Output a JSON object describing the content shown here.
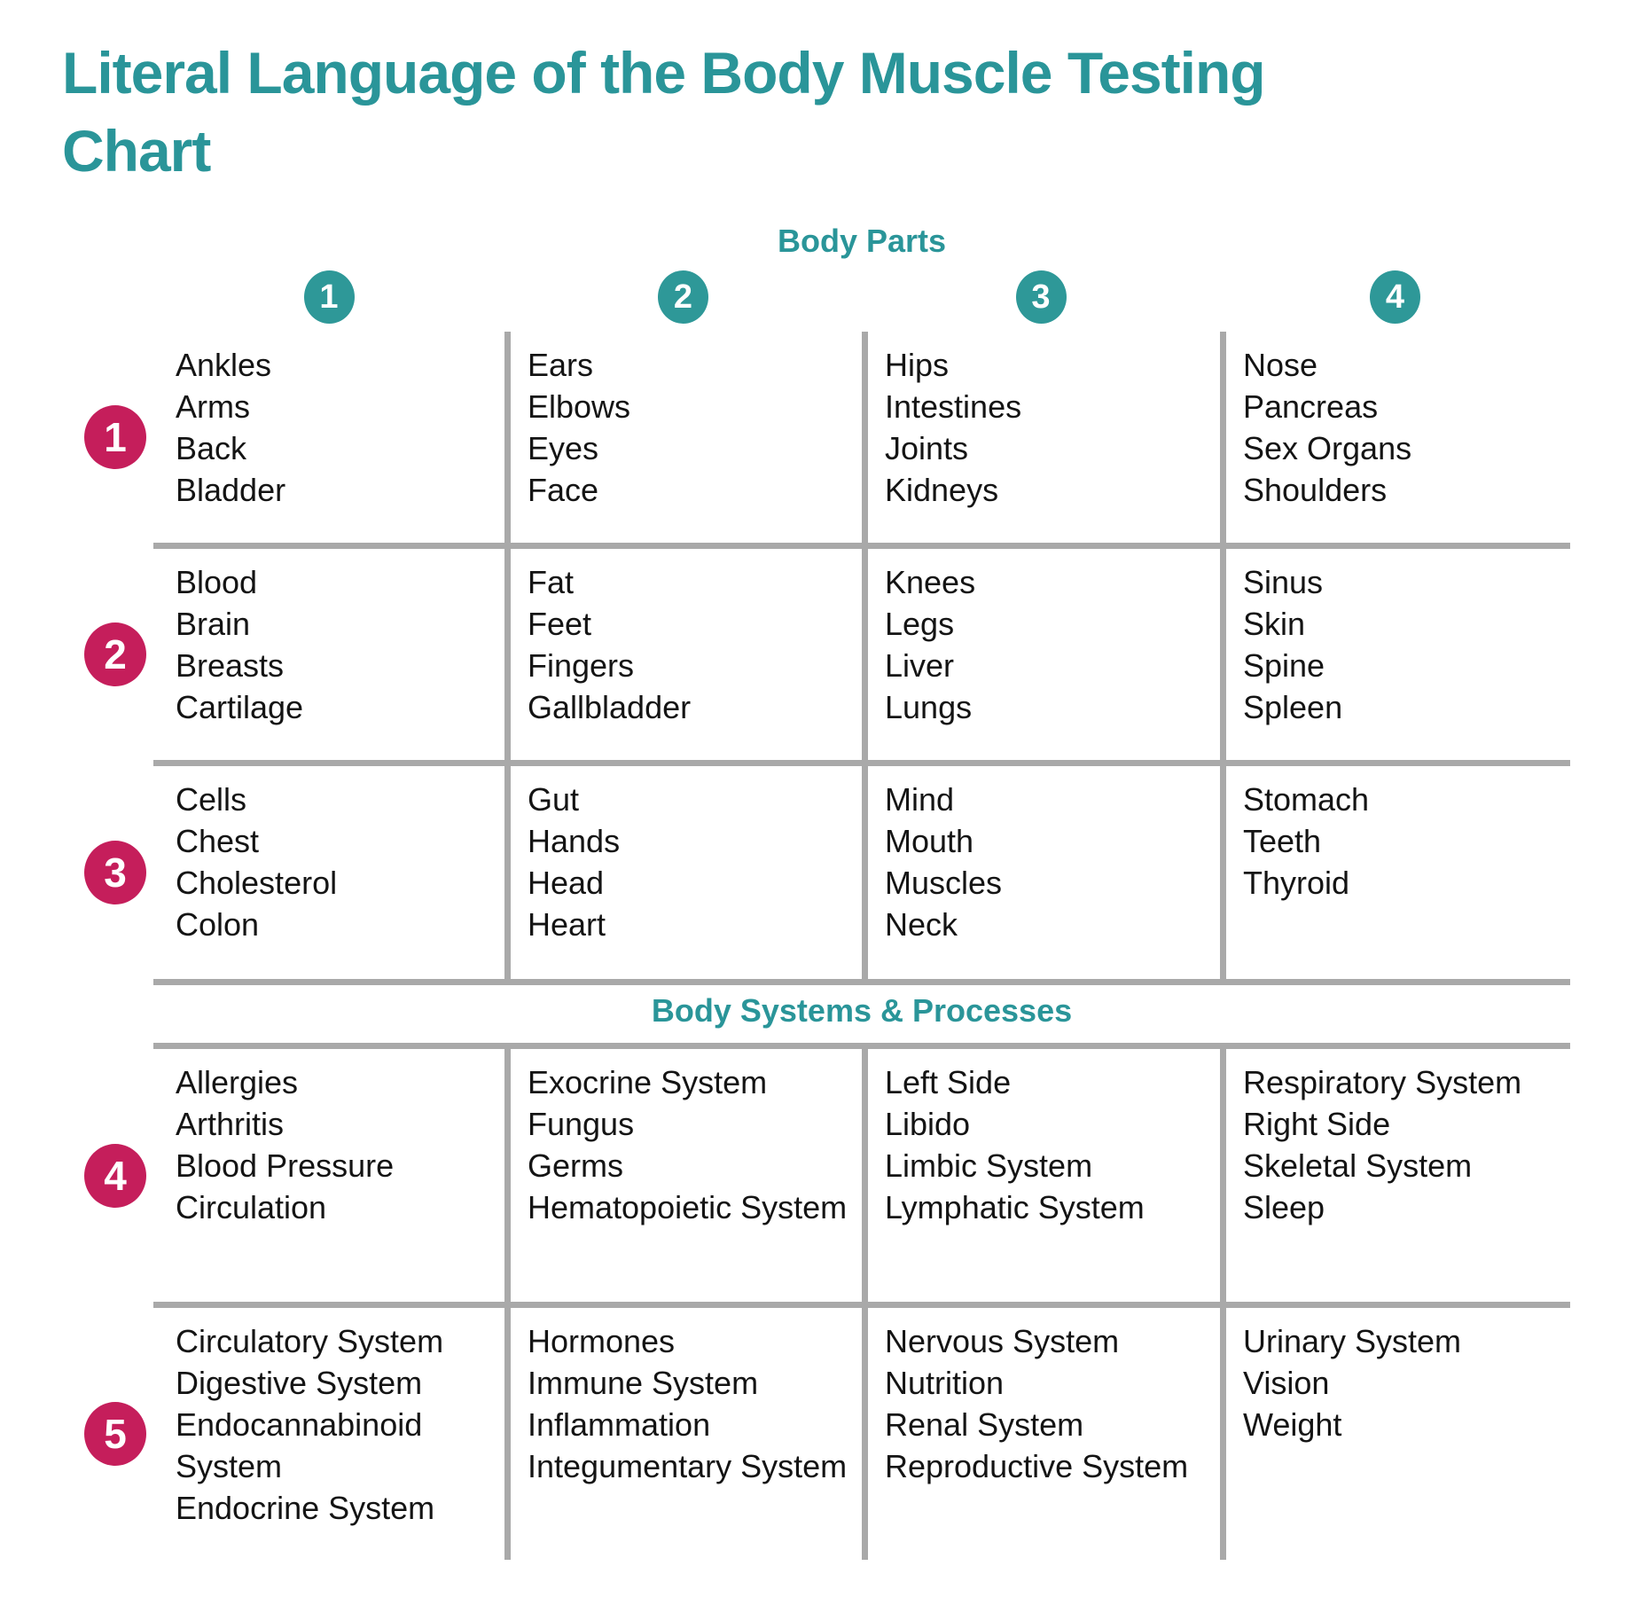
{
  "title": "Literal Language of the Body Muscle Testing Chart",
  "colors": {
    "accent_teal": "#2A9599",
    "circle_teal": "#2E9898",
    "row_badge_crimson": "#C51E5B",
    "grid_line_gray": "#A9A9A9",
    "text_black": "#141414"
  },
  "column_numbers": [
    "1",
    "2",
    "3",
    "4"
  ],
  "sections": [
    {
      "heading": "Body Parts",
      "rows": [
        {
          "number": "1",
          "cells": [
            [
              "Ankles",
              "Arms",
              "Back",
              "Bladder"
            ],
            [
              "Ears",
              "Elbows",
              "Eyes",
              "Face"
            ],
            [
              "Hips",
              "Intestines",
              "Joints",
              "Kidneys"
            ],
            [
              "Nose",
              "Pancreas",
              "Sex Organs",
              "Shoulders"
            ]
          ]
        },
        {
          "number": "2",
          "cells": [
            [
              "Blood",
              "Brain",
              "Breasts",
              "Cartilage"
            ],
            [
              "Fat",
              "Feet",
              "Fingers",
              "Gallbladder"
            ],
            [
              "Knees",
              "Legs",
              "Liver",
              "Lungs"
            ],
            [
              "Sinus",
              "Skin",
              "Spine",
              "Spleen"
            ]
          ]
        },
        {
          "number": "3",
          "cells": [
            [
              "Cells",
              "Chest",
              "Cholesterol",
              "Colon"
            ],
            [
              "Gut",
              "Hands",
              "Head",
              "Heart"
            ],
            [
              "Mind",
              "Mouth",
              "Muscles",
              "Neck"
            ],
            [
              "Stomach",
              "Teeth",
              "Thyroid"
            ]
          ]
        }
      ]
    },
    {
      "heading": "Body Systems & Processes",
      "rows": [
        {
          "number": "4",
          "cells": [
            [
              "Allergies",
              "Arthritis",
              "Blood Pressure",
              "Circulation"
            ],
            [
              "Exocrine System",
              "Fungus",
              "Germs",
              "Hematopoietic System"
            ],
            [
              "Left Side",
              "Libido",
              "Limbic System",
              "Lymphatic System"
            ],
            [
              "Respiratory System",
              "Right Side",
              "Skeletal System",
              "Sleep"
            ]
          ]
        },
        {
          "number": "5",
          "cells": [
            [
              "Circulatory System",
              "Digestive System",
              "Endocannabinoid System",
              "Endocrine System"
            ],
            [
              "Hormones",
              "Immune System",
              "Inflammation",
              "Integumentary System"
            ],
            [
              "Nervous System",
              "Nutrition",
              "Renal System",
              "Reproductive System"
            ],
            [
              "Urinary System",
              "Vision",
              "Weight"
            ]
          ]
        }
      ]
    }
  ]
}
